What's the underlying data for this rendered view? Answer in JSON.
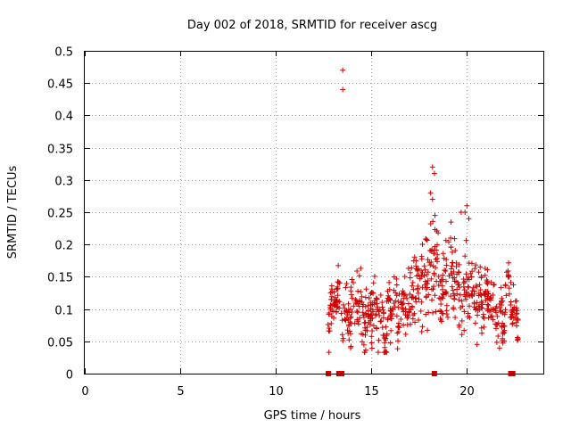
{
  "chart_data": {
    "type": "scatter",
    "title": "Day 002 of 2018, SRMTID for receiver ascg",
    "xlabel": "GPS time / hours",
    "ylabel": "SRMTID / TECUs",
    "xlim": [
      0,
      24
    ],
    "ylim": [
      0,
      0.5
    ],
    "xticks": [
      0,
      5,
      10,
      15,
      20
    ],
    "xtick_labels": [
      "0",
      "5",
      "10",
      "15",
      "20"
    ],
    "yticks": [
      0,
      0.05,
      0.1,
      0.15,
      0.2,
      0.25,
      0.3,
      0.35,
      0.4,
      0.45,
      0.5
    ],
    "ytick_labels": [
      "0",
      "0.05",
      "0.1",
      "0.15",
      "0.2",
      "0.25",
      "0.3",
      "0.35",
      "0.4",
      "0.45",
      "0.5"
    ],
    "grid": true,
    "marker": "plus",
    "color": "#d00000",
    "outlier_points": [
      [
        13.5,
        0.47
      ],
      [
        13.5,
        0.44
      ]
    ],
    "peak_points": [
      [
        18.2,
        0.32
      ],
      [
        18.3,
        0.31
      ],
      [
        18.1,
        0.28
      ],
      [
        18.2,
        0.27
      ],
      [
        20.0,
        0.26
      ],
      [
        19.9,
        0.25
      ],
      [
        20.1,
        0.24
      ],
      [
        19.7,
        0.25
      ]
    ],
    "zero_markers": [
      12.75,
      13.3,
      13.45,
      18.3,
      22.3,
      22.4
    ],
    "series": [
      {
        "name": "SRMTID",
        "x_range": [
          12.7,
          22.7
        ],
        "segments": [
          {
            "x0": 12.7,
            "x1": 13.5,
            "base": 0.1,
            "spread": 0.035
          },
          {
            "x0": 13.5,
            "x1": 15.0,
            "base": 0.1,
            "spread": 0.045
          },
          {
            "x0": 15.0,
            "x1": 16.5,
            "base": 0.09,
            "spread": 0.05
          },
          {
            "x0": 16.5,
            "x1": 17.5,
            "base": 0.12,
            "spread": 0.05
          },
          {
            "x0": 17.5,
            "x1": 18.5,
            "base": 0.16,
            "spread": 0.07
          },
          {
            "x0": 18.5,
            "x1": 20.0,
            "base": 0.14,
            "spread": 0.06
          },
          {
            "x0": 20.0,
            "x1": 21.0,
            "base": 0.12,
            "spread": 0.05
          },
          {
            "x0": 21.0,
            "x1": 22.0,
            "base": 0.09,
            "spread": 0.04
          },
          {
            "x0": 22.0,
            "x1": 22.7,
            "base": 0.1,
            "spread": 0.04
          }
        ]
      }
    ]
  }
}
